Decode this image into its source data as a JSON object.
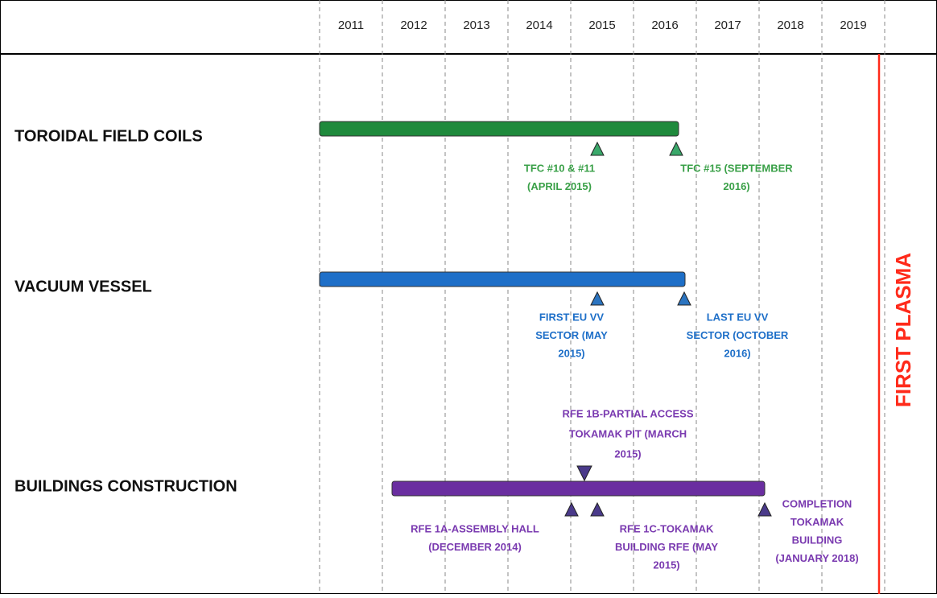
{
  "years": [
    "2011",
    "2012",
    "2013",
    "2014",
    "2015",
    "2016",
    "2017",
    "2018",
    "2019"
  ],
  "rows": [
    {
      "label": "TOROIDAL FIELD COILS",
      "milestones": [
        {
          "lines": [
            "TFC #10 & #11",
            "(APRIL 2015)"
          ]
        },
        {
          "lines": [
            "TFC #15 (SEPTEMBER",
            "2016)"
          ]
        }
      ]
    },
    {
      "label": "VACUUM VESSEL",
      "milestones": [
        {
          "lines": [
            "FIRST EU VV",
            "SECTOR (MAY",
            "2015)"
          ]
        },
        {
          "lines": [
            "LAST EU VV",
            "SECTOR (OCTOBER",
            "2016)"
          ]
        }
      ]
    },
    {
      "label": "BUILDINGS CONSTRUCTION",
      "milestones": [
        {
          "lines": [
            "RFE 1B-PARTIAL ACCESS",
            "TOKAMAK PIT (MARCH",
            "2015)"
          ]
        },
        {
          "lines": [
            "RFE 1A-ASSEMBLY HALL",
            "(DECEMBER 2014)"
          ]
        },
        {
          "lines": [
            "RFE 1C-TOKAMAK",
            "BUILDING RFE (MAY",
            "2015)"
          ]
        },
        {
          "lines": [
            "COMPLETION",
            "TOKAMAK",
            "BUILDING",
            "(JANUARY 2018)"
          ]
        }
      ]
    }
  ],
  "marker": "FIRST PLASMA"
}
